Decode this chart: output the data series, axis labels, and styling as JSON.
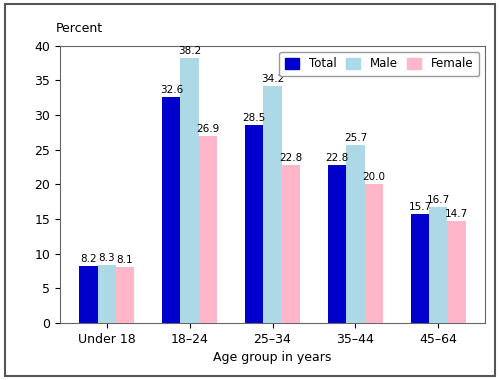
{
  "categories": [
    "Under 18",
    "18–24",
    "25–34",
    "35–44",
    "45–64"
  ],
  "total": [
    8.2,
    32.6,
    28.5,
    22.8,
    15.7
  ],
  "male": [
    8.3,
    38.2,
    34.2,
    25.7,
    16.7
  ],
  "female": [
    8.1,
    26.9,
    22.8,
    20.0,
    14.7
  ],
  "bar_colors": {
    "total": "#0000cc",
    "male": "#add8e6",
    "female": "#ffb6c8"
  },
  "legend_labels": [
    "Total",
    "Male",
    "Female"
  ],
  "ylabel": "Percent",
  "xlabel": "Age group in years",
  "ylim": [
    0,
    40
  ],
  "yticks": [
    0,
    5,
    10,
    15,
    20,
    25,
    30,
    35,
    40
  ],
  "label_fontsize": 9,
  "tick_fontsize": 9,
  "bar_label_fontsize": 7.5,
  "bar_width": 0.22,
  "background_color": "#ffffff",
  "border_color": "#888888",
  "fig_background": "#ffffff"
}
